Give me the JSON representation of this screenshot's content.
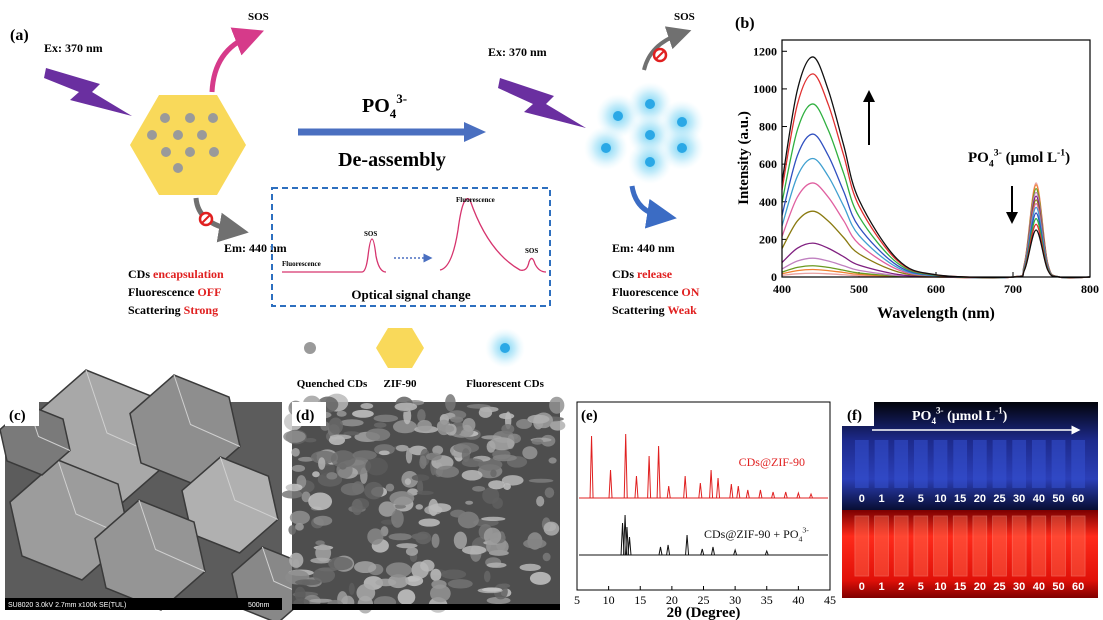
{
  "panel_a": {
    "label": "(a)",
    "left": {
      "ex": "Ex: 370 nm",
      "sos": "SOS",
      "em": "Em: 440 nm",
      "status": [
        [
          "CDs ",
          "encapsulation"
        ],
        [
          "Fluorescence ",
          "OFF"
        ],
        [
          "Scattering ",
          "Strong"
        ]
      ]
    },
    "arrow": {
      "ion": {
        "base": "PO",
        "sub": "4",
        "sup": "3-"
      },
      "caption": "De-assembly"
    },
    "inset": {
      "peak_label_left": "Fluorescence",
      "sos_left": "SOS",
      "peak_label_right": "Fluorescence",
      "sos_right": "SOS",
      "caption": "Optical signal change"
    },
    "right": {
      "ex": "Ex: 370 nm",
      "sos": "SOS",
      "em": "Em: 440 nm",
      "status": [
        [
          "CDs ",
          "release"
        ],
        [
          "Fluorescence ",
          "ON"
        ],
        [
          "Scattering ",
          "Weak"
        ]
      ]
    },
    "legend": [
      "Quenched CDs",
      "ZIF-90",
      "Fluorescent CDs"
    ]
  },
  "panel_b": {
    "type": "line",
    "label": "(b)",
    "y_label": "Intensity (a.u.)",
    "x_label": "Wavelength (nm)",
    "annotation": {
      "base": "PO",
      "sub": "4",
      "sup": "3-",
      "unit": " (μmol L",
      "unit_sup": "-1",
      "unit_end": ")"
    },
    "xlim": [
      400,
      800
    ],
    "ylim": [
      0,
      1260
    ],
    "xticks": [
      400,
      500,
      600,
      700,
      800
    ],
    "yticks": [
      0,
      200,
      400,
      600,
      800,
      1000,
      1200
    ],
    "x": [
      400,
      420,
      440,
      460,
      480,
      500,
      550,
      600,
      700,
      715,
      730,
      745,
      760,
      800
    ],
    "series": [
      {
        "color": "#e8a0a0",
        "values": [
          9,
          17,
          20,
          17,
          12,
          7,
          2,
          0,
          0,
          75,
          500,
          75,
          0,
          0
        ]
      },
      {
        "color": "#f08030",
        "values": [
          17,
          34,
          40,
          34,
          24,
          14,
          3,
          0,
          0,
          74,
          490,
          74,
          0,
          0
        ]
      },
      {
        "color": "#6a9a20",
        "values": [
          26,
          51,
          60,
          51,
          36,
          21,
          5,
          1,
          0,
          71,
          470,
          71,
          0,
          0
        ]
      },
      {
        "color": "#c080c0",
        "values": [
          43,
          85,
          100,
          85,
          60,
          35,
          8,
          1,
          0,
          68,
          450,
          68,
          0,
          0
        ]
      },
      {
        "color": "#802080",
        "values": [
          77,
          153,
          180,
          153,
          108,
          63,
          14,
          2,
          0,
          65,
          430,
          65,
          0,
          0
        ]
      },
      {
        "color": "#8a7a10",
        "values": [
          151,
          298,
          350,
          298,
          210,
          123,
          28,
          4,
          0,
          62,
          410,
          62,
          0,
          0
        ]
      },
      {
        "color": "#e060a0",
        "values": [
          215,
          425,
          500,
          425,
          300,
          175,
          40,
          5,
          0,
          59,
          390,
          59,
          0,
          0
        ]
      },
      {
        "color": "#40a0d0",
        "values": [
          271,
          536,
          630,
          536,
          378,
          221,
          50,
          6,
          0,
          56,
          370,
          56,
          0,
          0
        ]
      },
      {
        "color": "#3050c0",
        "values": [
          327,
          646,
          760,
          646,
          456,
          266,
          61,
          8,
          0,
          51,
          340,
          51,
          0,
          0
        ]
      },
      {
        "color": "#30b040",
        "values": [
          396,
          782,
          920,
          782,
          552,
          322,
          74,
          9,
          0,
          47,
          310,
          47,
          0,
          0
        ]
      },
      {
        "color": "#e03030",
        "values": [
          464,
          918,
          1080,
          918,
          648,
          378,
          86,
          11,
          0,
          42,
          280,
          42,
          0,
          0
        ]
      },
      {
        "color": "#101010",
        "values": [
          503,
          995,
          1170,
          995,
          702,
          410,
          94,
          12,
          0,
          38,
          250,
          38,
          0,
          0
        ]
      }
    ]
  },
  "panel_c": {
    "label": "(c)",
    "footer": "SU8020 3.0kV 2.7mm x100k SE(TUL)",
    "scale": "500nm"
  },
  "panel_d": {
    "label": "(d)"
  },
  "panel_e": {
    "label": "(e)",
    "x_label": "2θ (Degree)",
    "xlim": [
      5,
      45
    ],
    "xticks": [
      5,
      10,
      15,
      20,
      25,
      30,
      35,
      40,
      45
    ],
    "traces": [
      {
        "label": {
          "text": "CDs@ZIF-90"
        },
        "color": "#e02020",
        "peaks_x": [
          7.3,
          10.3,
          12.7,
          14.4,
          16.4,
          17.9,
          19.5,
          22.1,
          24.5,
          26.2,
          27.3,
          29.4,
          30.5,
          32,
          34,
          36,
          38,
          40,
          42
        ],
        "peaks_h": [
          62,
          28,
          64,
          22,
          42,
          52,
          12,
          22,
          15,
          28,
          20,
          14,
          12,
          8,
          8,
          6,
          6,
          5,
          4
        ]
      },
      {
        "label": {
          "text": "CDs@ZIF-90 + PO",
          "sub": "4",
          "sup": "3-"
        },
        "color": "#111111",
        "peaks_x": [
          12.2,
          12.6,
          12.9,
          13.3,
          18.2,
          19.4,
          22.4,
          24.8,
          26.5,
          30,
          35
        ],
        "peaks_h": [
          32,
          40,
          28,
          18,
          8,
          10,
          20,
          6,
          8,
          5,
          4
        ]
      }
    ]
  },
  "panel_f": {
    "label": "(f)",
    "header": {
      "base": "PO",
      "sub": "4",
      "sup": "3-",
      "unit": " (μmol L",
      "unit_sup": "-1",
      "unit_end": ")"
    },
    "concentrations": [
      0,
      1,
      2,
      5,
      10,
      15,
      20,
      25,
      30,
      40,
      50,
      60
    ]
  }
}
